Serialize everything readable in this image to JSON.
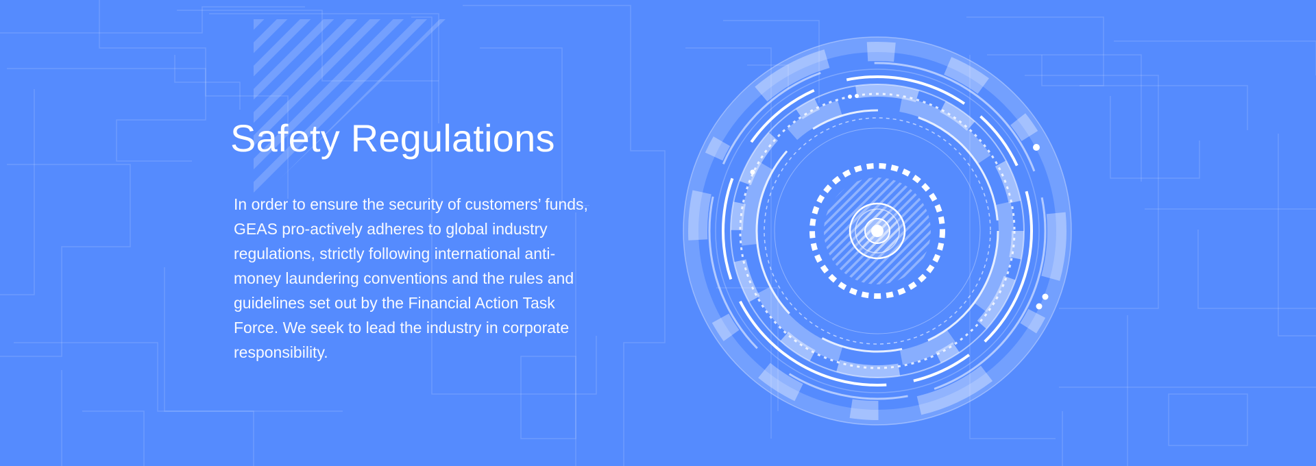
{
  "section": {
    "title": "Safety Regulations",
    "description": "In order to ensure the security of customers’ funds, GEAS pro-actively adheres to global industry regulations, strictly following international anti-money laundering conventions and the rules and guidelines set out by the Financial Action Task Force. We seek to lead the industry in corporate responsibility."
  },
  "colors": {
    "background": "#558bfe",
    "text": "#ffffff"
  },
  "decorations": {
    "left": "circuit-lines",
    "right": "tech-dial-illustration"
  }
}
